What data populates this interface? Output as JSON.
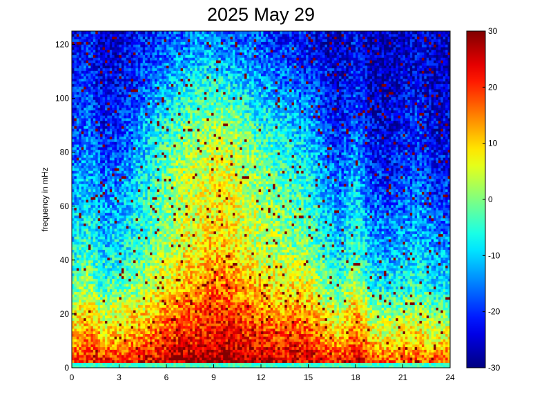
{
  "chart_data": {
    "type": "heatmap",
    "title": "2025 May 29",
    "xlabel": "",
    "ylabel": "frequency in mHz",
    "xlim": [
      0,
      24
    ],
    "ylim": [
      0,
      125
    ],
    "x_ticks": [
      0,
      3,
      6,
      9,
      12,
      15,
      18,
      21,
      24
    ],
    "y_ticks": [
      0,
      20,
      40,
      60,
      80,
      100,
      120
    ],
    "colorbar": {
      "colormap": "jet",
      "range": [
        -30,
        30
      ],
      "ticks": [
        30,
        20,
        10,
        0,
        -10,
        -20,
        -30
      ]
    },
    "grid": false,
    "description_levels": {
      "x_hours": [
        0,
        1,
        2,
        3,
        4,
        5,
        6,
        7,
        8,
        9,
        10,
        11,
        12,
        13,
        14,
        15,
        16,
        17,
        18,
        19,
        20,
        21,
        22,
        23
      ],
      "freq_mhz": [
        2,
        10,
        20,
        30,
        45,
        60,
        75,
        90,
        105,
        120
      ],
      "values": [
        [
          20,
          22,
          22,
          22,
          22,
          24,
          26,
          28,
          28,
          28,
          28,
          28,
          26,
          26,
          24,
          24,
          22,
          22,
          24,
          20,
          18,
          18,
          18,
          18
        ],
        [
          12,
          16,
          12,
          12,
          14,
          16,
          20,
          22,
          22,
          24,
          24,
          22,
          22,
          20,
          20,
          20,
          14,
          12,
          18,
          10,
          8,
          10,
          10,
          8
        ],
        [
          6,
          10,
          4,
          6,
          8,
          10,
          14,
          18,
          18,
          20,
          20,
          18,
          16,
          14,
          14,
          14,
          8,
          4,
          14,
          2,
          0,
          2,
          4,
          0
        ],
        [
          -2,
          2,
          -4,
          -2,
          0,
          4,
          8,
          12,
          14,
          16,
          16,
          12,
          10,
          8,
          8,
          8,
          0,
          -4,
          4,
          -6,
          -8,
          -6,
          -4,
          -8
        ],
        [
          -8,
          -4,
          -10,
          -8,
          -6,
          -2,
          2,
          6,
          8,
          10,
          10,
          6,
          4,
          2,
          0,
          0,
          -6,
          -10,
          -4,
          -12,
          -14,
          -12,
          -10,
          -14
        ],
        [
          -12,
          -8,
          -14,
          -12,
          -8,
          -4,
          0,
          4,
          6,
          8,
          8,
          4,
          2,
          0,
          -2,
          -4,
          -10,
          -14,
          -8,
          -16,
          -18,
          -16,
          -14,
          -18
        ],
        [
          -16,
          -12,
          -18,
          -16,
          -12,
          -6,
          -2,
          2,
          4,
          6,
          6,
          2,
          0,
          -4,
          -6,
          -8,
          -14,
          -18,
          -12,
          -20,
          -22,
          -20,
          -18,
          -22
        ],
        [
          -20,
          -16,
          -22,
          -20,
          -16,
          -10,
          -6,
          -2,
          0,
          2,
          2,
          -2,
          -6,
          -8,
          -10,
          -12,
          -18,
          -22,
          -16,
          -24,
          -24,
          -22,
          -20,
          -24
        ],
        [
          -22,
          -18,
          -24,
          -22,
          -20,
          -16,
          -12,
          -8,
          -6,
          -6,
          -8,
          -10,
          -12,
          -14,
          -16,
          -18,
          -20,
          -24,
          -20,
          -26,
          -26,
          -24,
          -22,
          -26
        ],
        [
          -24,
          -20,
          -26,
          -24,
          -22,
          -20,
          -18,
          -16,
          -14,
          -14,
          -16,
          -16,
          -18,
          -20,
          -20,
          -22,
          -24,
          -26,
          -22,
          -26,
          -26,
          -26,
          -24,
          -26
        ]
      ]
    }
  }
}
